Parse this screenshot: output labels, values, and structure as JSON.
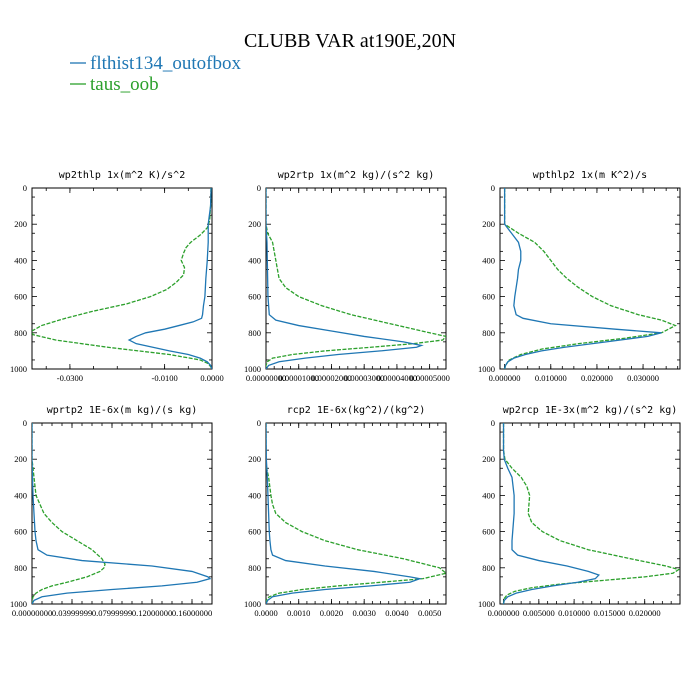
{
  "title": "CLUBB VAR at190E,20N",
  "legend": [
    {
      "label": "flthist134_outofbox",
      "color": "#1f77b4",
      "dashed": false
    },
    {
      "label": "taus_oob",
      "color": "#2ca02c",
      "dashed": true
    }
  ],
  "chart_data": [
    {
      "type": "line",
      "title": "wp2thlp  1x(m^2 K)/s^2",
      "xlim": [
        -0.038,
        0.0
      ],
      "xticks": [
        "-0.0300",
        "-0.0100",
        "0.0000"
      ],
      "xtick_values": [
        -0.03,
        -0.01,
        0.0
      ],
      "ylim": [
        1000,
        0
      ],
      "yticks": [
        "0",
        "200",
        "400",
        "600",
        "800",
        "1000"
      ],
      "series": [
        {
          "name": "flthist134_outofbox",
          "y": [
            0,
            100,
            200,
            300,
            400,
            500,
            600,
            650,
            700,
            720,
            740,
            760,
            780,
            800,
            820,
            840,
            860,
            880,
            900,
            920,
            940,
            960,
            980,
            1000
          ],
          "x": [
            -0.0002,
            -0.0003,
            -0.0008,
            -0.0008,
            -0.001,
            -0.0013,
            -0.0015,
            -0.0018,
            -0.002,
            -0.0022,
            -0.004,
            -0.007,
            -0.01,
            -0.014,
            -0.016,
            -0.0175,
            -0.016,
            -0.0125,
            -0.009,
            -0.005,
            -0.0025,
            -0.001,
            -0.0003,
            0.0
          ]
        },
        {
          "name": "taus_oob",
          "y": [
            0,
            100,
            180,
            220,
            260,
            300,
            330,
            360,
            400,
            440,
            480,
            520,
            560,
            600,
            640,
            680,
            720,
            760,
            790,
            810,
            840,
            880,
            920,
            950,
            970,
            990,
            1000
          ],
          "x": [
            -0.0002,
            -0.0003,
            -0.0005,
            -0.001,
            -0.0025,
            -0.0045,
            -0.0055,
            -0.006,
            -0.0065,
            -0.0058,
            -0.006,
            -0.0075,
            -0.0095,
            -0.013,
            -0.018,
            -0.025,
            -0.031,
            -0.036,
            -0.038,
            -0.0378,
            -0.033,
            -0.022,
            -0.009,
            -0.0025,
            -0.0008,
            -0.0002,
            0.0
          ]
        }
      ]
    },
    {
      "type": "line",
      "title": "wp2rtp  1x(m^2 kg)/(s^2 kg)",
      "xlim": [
        0.0,
        5.5e-05
      ],
      "xticks": [
        "0.00000000",
        "0.00001000",
        "0.00002000",
        "0.00003000",
        "0.00004000",
        "0.00005000"
      ],
      "xtick_values": [
        0.0,
        1e-05,
        2e-05,
        3e-05,
        4e-05,
        5e-05
      ],
      "ylim": [
        1000,
        0
      ],
      "yticks": [
        "0",
        "200",
        "400",
        "600",
        "800",
        "1000"
      ],
      "series": [
        {
          "name": "flthist134_outofbox",
          "y": [
            0,
            200,
            300,
            400,
            500,
            600,
            650,
            700,
            730,
            760,
            790,
            820,
            850,
            870,
            880,
            900,
            920,
            940,
            960,
            980,
            1000
          ],
          "x": [
            0.0,
            0.0,
            3e-07,
            4e-07,
            5e-07,
            6e-07,
            8e-07,
            1e-06,
            3e-06,
            1e-05,
            2e-05,
            3e-05,
            4.2e-05,
            4.75e-05,
            4.6e-05,
            3.5e-05,
            2.2e-05,
            1.2e-05,
            4e-06,
            8e-07,
            0.0
          ]
        },
        {
          "name": "taus_oob",
          "y": [
            0,
            200,
            250,
            300,
            400,
            500,
            550,
            600,
            650,
            700,
            750,
            800,
            820,
            840,
            860,
            880,
            900,
            920,
            940,
            960,
            980,
            1000
          ],
          "x": [
            0.0,
            0.0,
            5e-07,
            2e-06,
            3e-06,
            4e-06,
            6e-06,
            1e-05,
            1.7e-05,
            2.6e-05,
            3.8e-05,
            5e-05,
            5.5e-05,
            5.4e-05,
            4.5e-05,
            3.2e-05,
            1.8e-05,
            8e-06,
            2e-06,
            4e-07,
            0.0,
            0.0
          ]
        }
      ]
    },
    {
      "type": "line",
      "title": "wpthlp2  1x(m K^2)/s",
      "xlim": [
        -0.001,
        0.038
      ],
      "xticks": [
        "0.000000",
        "0.010000",
        "0.020000",
        "0.030000"
      ],
      "xtick_values": [
        0.0,
        0.01,
        0.02,
        0.03
      ],
      "ylim": [
        1000,
        0
      ],
      "yticks": [
        "0",
        "200",
        "400",
        "600",
        "800",
        "1000"
      ],
      "series": [
        {
          "name": "flthist134_outofbox",
          "y": [
            0,
            150,
            200,
            250,
            300,
            350,
            400,
            450,
            500,
            550,
            600,
            650,
            700,
            720,
            750,
            780,
            800,
            820,
            850,
            880,
            900,
            920,
            940,
            960,
            980,
            1000
          ],
          "x": [
            0.0,
            0.0,
            0.0,
            0.0015,
            0.003,
            0.0035,
            0.0035,
            0.003,
            0.0028,
            0.0025,
            0.0022,
            0.002,
            0.0025,
            0.004,
            0.01,
            0.024,
            0.034,
            0.031,
            0.022,
            0.013,
            0.008,
            0.0045,
            0.002,
            0.0007,
            0.0002,
            0.0
          ]
        },
        {
          "name": "taus_oob",
          "y": [
            0,
            150,
            200,
            250,
            300,
            350,
            400,
            450,
            500,
            550,
            600,
            650,
            700,
            730,
            760,
            800,
            830,
            860,
            890,
            920,
            950,
            980,
            1000
          ],
          "x": [
            0.0,
            0.0,
            0.0,
            0.003,
            0.0065,
            0.0085,
            0.01,
            0.0115,
            0.0135,
            0.016,
            0.019,
            0.023,
            0.029,
            0.034,
            0.037,
            0.034,
            0.026,
            0.016,
            0.008,
            0.0035,
            0.001,
            0.0002,
            0.0
          ]
        }
      ]
    },
    {
      "type": "line",
      "title": "wprtp2  1E-6x(m kg)/(s kg)",
      "xlim": [
        0.0,
        0.18
      ],
      "xticks": [
        "0.00000000",
        "0.03999999",
        "0.07999999",
        "0.12000000",
        "0.16000000"
      ],
      "xtick_values": [
        0.0,
        0.04,
        0.08,
        0.12,
        0.16
      ],
      "ylim": [
        1000,
        0
      ],
      "yticks": [
        "0",
        "200",
        "400",
        "600",
        "800",
        "1000"
      ],
      "series": [
        {
          "name": "flthist134_outofbox",
          "y": [
            0,
            200,
            300,
            400,
            500,
            600,
            650,
            700,
            730,
            760,
            790,
            820,
            850,
            860,
            880,
            900,
            920,
            940,
            960,
            980,
            1000
          ],
          "x": [
            0.0,
            0.0,
            0.0005,
            0.001,
            0.002,
            0.003,
            0.004,
            0.006,
            0.015,
            0.05,
            0.12,
            0.16,
            0.176,
            0.178,
            0.165,
            0.13,
            0.08,
            0.035,
            0.01,
            0.002,
            0.0
          ]
        },
        {
          "name": "taus_oob",
          "y": [
            0,
            200,
            300,
            400,
            450,
            500,
            550,
            600,
            650,
            700,
            750,
            780,
            800,
            820,
            850,
            880,
            900,
            920,
            940,
            960,
            980,
            1000
          ],
          "x": [
            0.0,
            0.0,
            0.002,
            0.004,
            0.008,
            0.012,
            0.02,
            0.03,
            0.045,
            0.06,
            0.07,
            0.073,
            0.072,
            0.068,
            0.055,
            0.035,
            0.02,
            0.01,
            0.004,
            0.001,
            0.0002,
            0.0
          ]
        }
      ]
    },
    {
      "type": "line",
      "title": "rcp2  1E-6x(kg^2)/(kg^2)",
      "xlim": [
        0.0,
        0.0055
      ],
      "xticks": [
        "0.0000",
        "0.0010",
        "0.0020",
        "0.0030",
        "0.0040",
        "0.0050"
      ],
      "xtick_values": [
        0.0,
        0.001,
        0.002,
        0.003,
        0.004,
        0.005
      ],
      "ylim": [
        1000,
        0
      ],
      "yticks": [
        "0",
        "200",
        "400",
        "600",
        "800",
        "1000"
      ],
      "series": [
        {
          "name": "flthist134_outofbox",
          "y": [
            0,
            200,
            300,
            400,
            500,
            600,
            650,
            700,
            730,
            760,
            790,
            820,
            850,
            860,
            880,
            900,
            920,
            940,
            960,
            980,
            1000
          ],
          "x": [
            0.0,
            1e-05,
            4e-05,
            6e-05,
            8e-05,
            0.0001,
            0.00012,
            0.00015,
            0.0002,
            0.0006,
            0.0018,
            0.0033,
            0.0044,
            0.0047,
            0.0044,
            0.0032,
            0.0018,
            0.0008,
            0.0002,
            5e-05,
            0.0
          ]
        },
        {
          "name": "taus_oob",
          "y": [
            0,
            200,
            250,
            300,
            400,
            450,
            500,
            550,
            600,
            650,
            700,
            750,
            800,
            830,
            860,
            880,
            900,
            920,
            940,
            960,
            980,
            1000
          ],
          "x": [
            0.0,
            0.0,
            2e-05,
            8e-05,
            0.00015,
            0.0002,
            0.0003,
            0.0006,
            0.0011,
            0.0018,
            0.0028,
            0.0042,
            0.0053,
            0.0055,
            0.0048,
            0.0035,
            0.0022,
            0.0011,
            0.0004,
            0.0001,
            0.0,
            0.0
          ]
        }
      ]
    },
    {
      "type": "line",
      "title": "wp2rcp  1E-3x(m^2 kg)/(s^2 kg)",
      "xlim": [
        -0.0005,
        0.025
      ],
      "xticks": [
        "0.000000",
        "0.005000",
        "0.010000",
        "0.015000",
        "0.020000"
      ],
      "xtick_values": [
        0.0,
        0.005,
        0.01,
        0.015,
        0.02
      ],
      "ylim": [
        1000,
        0
      ],
      "yticks": [
        "0",
        "200",
        "400",
        "600",
        "800",
        "1000"
      ],
      "series": [
        {
          "name": "flthist134_outofbox",
          "y": [
            0,
            150,
            200,
            250,
            300,
            400,
            500,
            600,
            650,
            700,
            730,
            760,
            790,
            820,
            840,
            860,
            880,
            900,
            920,
            940,
            960,
            980,
            1000
          ],
          "x": [
            0.0,
            0.0,
            0.0001,
            0.0006,
            0.0012,
            0.0015,
            0.0015,
            0.0013,
            0.0012,
            0.0012,
            0.002,
            0.005,
            0.009,
            0.012,
            0.0135,
            0.013,
            0.0105,
            0.007,
            0.004,
            0.0018,
            0.0006,
            0.0001,
            0.0
          ]
        },
        {
          "name": "taus_oob",
          "y": [
            0,
            150,
            200,
            250,
            300,
            350,
            400,
            450,
            500,
            550,
            600,
            650,
            700,
            750,
            790,
            810,
            830,
            850,
            870,
            890,
            910,
            930,
            950,
            970,
            1000
          ],
          "x": [
            0.0,
            0.0,
            0.0002,
            0.0012,
            0.0025,
            0.0033,
            0.0037,
            0.0036,
            0.0035,
            0.004,
            0.0055,
            0.008,
            0.012,
            0.018,
            0.023,
            0.0248,
            0.024,
            0.02,
            0.014,
            0.008,
            0.004,
            0.0016,
            0.0005,
            0.0001,
            0.0
          ]
        }
      ]
    }
  ]
}
